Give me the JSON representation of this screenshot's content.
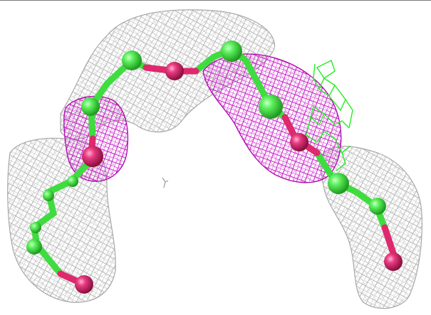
{
  "viewer": {
    "background": "#ffffff",
    "colors": {
      "mesh_2fofc": "#bdbdbd",
      "mesh_fofc": "#cc22cc",
      "carbon_atom": "#4de84d",
      "oxygen_atom": "#e0286e",
      "alt_conformer": "#22ee22"
    },
    "mesh_regions": [
      {
        "name": "left-lobe",
        "color_key": "mesh_2fofc"
      },
      {
        "name": "top-bridge",
        "color_key": "mesh_2fofc"
      },
      {
        "name": "right-lobe",
        "color_key": "mesh_2fofc"
      },
      {
        "name": "left-difference",
        "color_key": "mesh_fofc"
      },
      {
        "name": "right-difference",
        "color_key": "mesh_fofc"
      }
    ],
    "molecule": {
      "representation": "ball-and-stick",
      "elements": [
        "C",
        "O"
      ]
    }
  }
}
